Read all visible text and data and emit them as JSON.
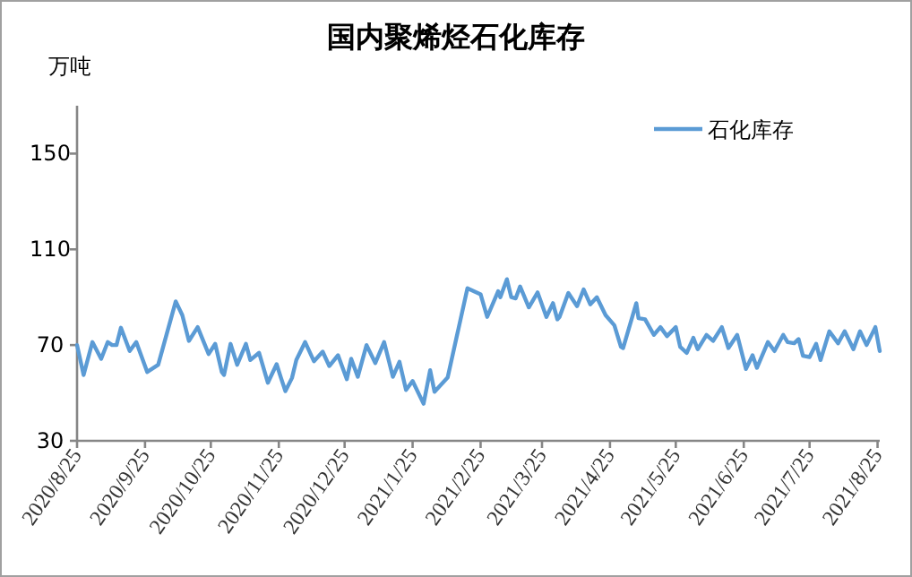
{
  "chart_data": {
    "type": "line",
    "title": "国内聚烯烃石化库存",
    "ylabel": "万吨",
    "legend": "top right",
    "xlim": [
      "2020-08-25",
      "2021-08-26"
    ],
    "xticks": [
      {
        "value": "2020-08-25",
        "label": "2020/8/25"
      },
      {
        "value": "2020-09-25",
        "label": "2020/9/25"
      },
      {
        "value": "2020-10-25",
        "label": "2020/10/25"
      },
      {
        "value": "2020-11-25",
        "label": "2020/11/25"
      },
      {
        "value": "2020-12-25",
        "label": "2020/12/25"
      },
      {
        "value": "2021-01-25",
        "label": "2021/1/25"
      },
      {
        "value": "2021-02-25",
        "label": "2021/2/25"
      },
      {
        "value": "2021-03-25",
        "label": "2021/3/25"
      },
      {
        "value": "2021-04-25",
        "label": "2021/4/25"
      },
      {
        "value": "2021-05-25",
        "label": "2021/5/25"
      },
      {
        "value": "2021-06-25",
        "label": "2021/6/25"
      },
      {
        "value": "2021-07-25",
        "label": "2021/7/25"
      },
      {
        "value": "2021-08-25",
        "label": "2021/8/25"
      }
    ],
    "ylim": [
      30,
      170
    ],
    "yticks": [
      30,
      70,
      110,
      150
    ],
    "series": [
      {
        "name": "石化库存",
        "color": "#5b9bd5",
        "x": [
          "2020-08-25",
          "2020-08-28",
          "2020-09-01",
          "2020-09-05",
          "2020-09-08",
          "2020-09-10",
          "2020-09-12",
          "2020-09-14",
          "2020-09-18",
          "2020-09-21",
          "2020-09-26",
          "2020-10-01",
          "2020-10-09",
          "2020-10-12",
          "2020-10-15",
          "2020-10-19",
          "2020-10-24",
          "2020-10-27",
          "2020-10-30",
          "2020-10-31",
          "2020-11-03",
          "2020-11-06",
          "2020-11-10",
          "2020-11-12",
          "2020-11-16",
          "2020-11-20",
          "2020-11-24",
          "2020-11-26",
          "2020-11-28",
          "2020-12-01",
          "2020-12-03",
          "2020-12-07",
          "2020-12-11",
          "2020-12-15",
          "2020-12-18",
          "2020-12-22",
          "2020-12-26",
          "2020-12-28",
          "2020-12-31",
          "2021-01-04",
          "2021-01-08",
          "2021-01-12",
          "2021-01-16",
          "2021-01-19",
          "2021-01-22",
          "2021-01-25",
          "2021-01-30",
          "2021-02-02",
          "2021-02-04",
          "2021-02-10",
          "2021-02-19",
          "2021-02-25",
          "2021-02-28",
          "2021-03-05",
          "2021-03-06",
          "2021-03-09",
          "2021-03-11",
          "2021-03-13",
          "2021-03-15",
          "2021-03-19",
          "2021-03-23",
          "2021-03-27",
          "2021-03-30",
          "2021-04-01",
          "2021-04-02",
          "2021-04-06",
          "2021-04-10",
          "2021-04-13",
          "2021-04-16",
          "2021-04-19",
          "2021-04-23",
          "2021-04-27",
          "2021-04-30",
          "2021-05-01",
          "2021-05-07",
          "2021-05-08",
          "2021-05-11",
          "2021-05-15",
          "2021-05-18",
          "2021-05-21",
          "2021-05-25",
          "2021-05-27",
          "2021-05-30",
          "2021-06-02",
          "2021-06-04",
          "2021-06-08",
          "2021-06-11",
          "2021-06-15",
          "2021-06-18",
          "2021-06-22",
          "2021-06-26",
          "2021-06-29",
          "2021-07-01",
          "2021-07-06",
          "2021-07-09",
          "2021-07-13",
          "2021-07-15",
          "2021-07-18",
          "2021-07-20",
          "2021-07-22",
          "2021-07-25",
          "2021-07-28",
          "2021-07-30",
          "2021-08-03",
          "2021-08-07",
          "2021-08-10",
          "2021-08-14",
          "2021-08-17",
          "2021-08-20",
          "2021-08-24",
          "2021-08-26"
        ],
        "values": [
          70,
          57.5,
          71.25,
          64.25,
          71.25,
          70,
          70,
          77.25,
          67.5,
          71.25,
          58.75,
          61.75,
          88.25,
          82.5,
          71.75,
          77.5,
          66.25,
          70.5,
          58.75,
          57.5,
          70.5,
          61.75,
          70.5,
          63.75,
          66.75,
          54.25,
          62,
          56.25,
          50.75,
          56.25,
          63.75,
          71.25,
          63.25,
          67.25,
          61.25,
          65.75,
          55.75,
          64.25,
          56.75,
          70,
          62.5,
          71.25,
          56.75,
          63,
          51.25,
          55,
          45.5,
          59.5,
          50.5,
          56.5,
          93.75,
          91.25,
          81.75,
          92.5,
          90,
          97.5,
          90,
          89.5,
          94.5,
          85.75,
          92,
          81.75,
          87.5,
          80.75,
          81.75,
          91.75,
          86.25,
          93.25,
          87,
          90,
          82.5,
          78.25,
          69.25,
          68.75,
          87.5,
          81.25,
          80.75,
          74.25,
          77.5,
          73.75,
          77.5,
          69.25,
          66.75,
          73,
          68.25,
          74.25,
          71.75,
          77.5,
          68.75,
          74.25,
          60,
          65.75,
          60.5,
          71.25,
          67.5,
          74.25,
          71.25,
          70.75,
          72.5,
          65.5,
          65,
          70.5,
          63.75,
          75.75,
          70.75,
          75.75,
          68.25,
          75.75,
          70,
          77.5,
          67.5
        ]
      }
    ]
  }
}
